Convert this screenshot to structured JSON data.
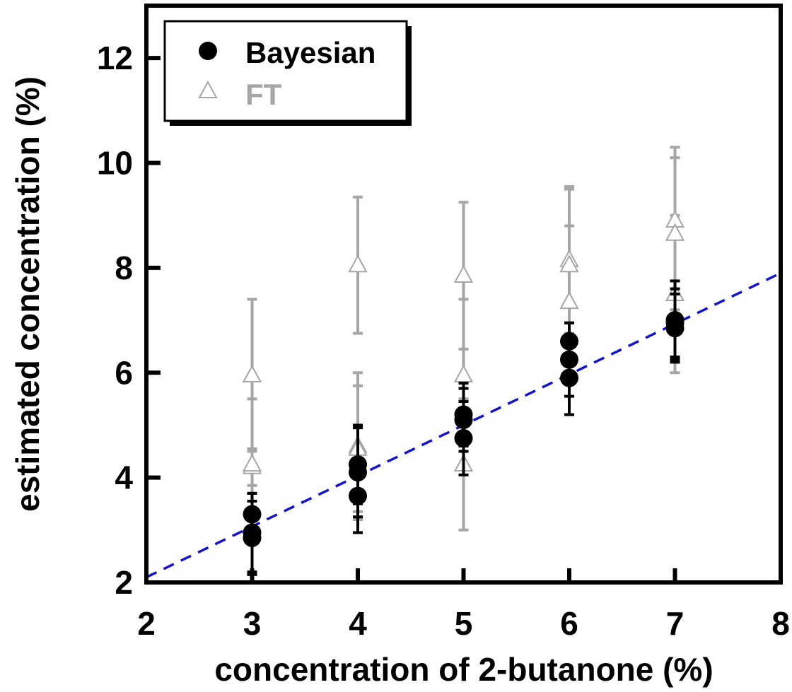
{
  "chart_data": {
    "type": "scatter",
    "xlabel": "concentration of 2-butanone (%)",
    "ylabel": "estimated concentration (%)",
    "xlim": [
      2,
      8
    ],
    "ylim": [
      2,
      13
    ],
    "xticks": [
      2,
      3,
      4,
      5,
      6,
      7,
      8
    ],
    "yticks": [
      2,
      4,
      6,
      8,
      10,
      12
    ],
    "grid": false,
    "legend_position": "top-left",
    "reference_line": {
      "style": "dashed",
      "color": "#1414c8",
      "x": [
        2,
        8
      ],
      "y": [
        2.1,
        7.9
      ]
    },
    "series": [
      {
        "name": "FT",
        "marker": "open-triangle",
        "color": "#a6a6a6",
        "points": [
          {
            "x": 3,
            "y": 5.95,
            "err": 1.45
          },
          {
            "x": 3,
            "y": 4.2,
            "err": 0.35
          },
          {
            "x": 3,
            "y": 4.25,
            "err": 1.25
          },
          {
            "x": 4,
            "y": 8.05,
            "err": 1.3
          },
          {
            "x": 4,
            "y": 4.6,
            "err": 1.4
          },
          {
            "x": 4,
            "y": 4.55,
            "err": 1.2
          },
          {
            "x": 5,
            "y": 7.85,
            "err": 1.4
          },
          {
            "x": 5,
            "y": 5.95,
            "err": 1.45
          },
          {
            "x": 5,
            "y": 4.25,
            "err": 1.25
          },
          {
            "x": 6,
            "y": 8.15,
            "err": 1.4
          },
          {
            "x": 6,
            "y": 8.05,
            "err": 1.45
          },
          {
            "x": 6,
            "y": 7.35,
            "err": 1.45
          },
          {
            "x": 7,
            "y": 8.9,
            "err": 1.4
          },
          {
            "x": 7,
            "y": 8.65,
            "err": 1.45
          },
          {
            "x": 7,
            "y": 7.5,
            "err": 1.5
          }
        ]
      },
      {
        "name": "Bayesian",
        "marker": "filled-circle",
        "color": "#000000",
        "points": [
          {
            "x": 3,
            "y": 3.3,
            "err": 0.4
          },
          {
            "x": 3,
            "y": 2.95,
            "err": 0.75
          },
          {
            "x": 3,
            "y": 2.85,
            "err": 0.7
          },
          {
            "x": 4,
            "y": 4.25,
            "err": 0.75
          },
          {
            "x": 4,
            "y": 4.1,
            "err": 0.85
          },
          {
            "x": 4,
            "y": 3.65,
            "err": 0.7
          },
          {
            "x": 5,
            "y": 5.2,
            "err": 0.6
          },
          {
            "x": 5,
            "y": 5.1,
            "err": 0.6
          },
          {
            "x": 5,
            "y": 4.75,
            "err": 0.7
          },
          {
            "x": 6,
            "y": 6.6,
            "err": 0.35
          },
          {
            "x": 6,
            "y": 6.25,
            "err": 0.7
          },
          {
            "x": 6,
            "y": 5.9,
            "err": 0.7
          },
          {
            "x": 7,
            "y": 7.0,
            "err": 0.75
          },
          {
            "x": 7,
            "y": 6.95,
            "err": 0.65
          },
          {
            "x": 7,
            "y": 6.85,
            "err": 0.65
          }
        ]
      }
    ]
  }
}
